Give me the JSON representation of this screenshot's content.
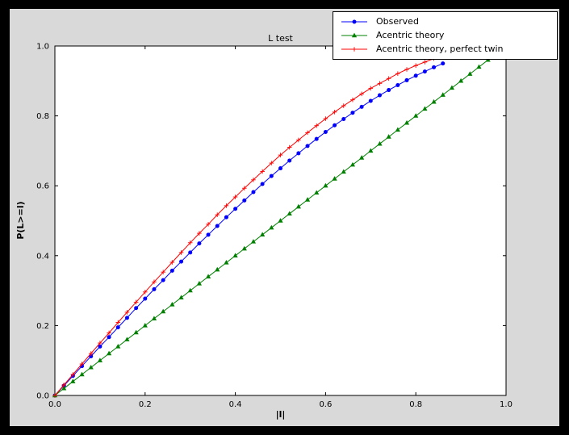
{
  "window": {
    "background": "#000000"
  },
  "figure": {
    "background": "#d9d9d9"
  },
  "axes": {
    "facecolor": "#ffffff",
    "edgecolor": "#000000"
  },
  "chart_data": {
    "type": "line",
    "title": "L test",
    "xlabel": "|l|",
    "ylabel": "P(L>=l)",
    "xlim": [
      0.0,
      1.0
    ],
    "ylim": [
      0.0,
      1.0
    ],
    "xticks": [
      0.0,
      0.2,
      0.4,
      0.6,
      0.8,
      1.0
    ],
    "yticks": [
      0.0,
      0.2,
      0.4,
      0.6,
      0.8,
      1.0
    ],
    "grid": false,
    "legend_position": "upper right",
    "series": [
      {
        "name": "Observed",
        "color": "#0000ff",
        "marker": "circle",
        "x": [
          0,
          0.02,
          0.04,
          0.06,
          0.08,
          0.1,
          0.12,
          0.14,
          0.16,
          0.18,
          0.2,
          0.22,
          0.24,
          0.26,
          0.28,
          0.3,
          0.32,
          0.34,
          0.36,
          0.38,
          0.4,
          0.42,
          0.44,
          0.46,
          0.48,
          0.5,
          0.52,
          0.54,
          0.56,
          0.58,
          0.6,
          0.62,
          0.64,
          0.66,
          0.68,
          0.7,
          0.72,
          0.74,
          0.76,
          0.78,
          0.8,
          0.82,
          0.84,
          0.86
        ],
        "y": [
          0,
          0.028,
          0.056,
          0.084,
          0.112,
          0.14,
          0.167,
          0.195,
          0.222,
          0.25,
          0.277,
          0.304,
          0.33,
          0.357,
          0.383,
          0.409,
          0.435,
          0.46,
          0.485,
          0.51,
          0.534,
          0.558,
          0.582,
          0.605,
          0.628,
          0.65,
          0.672,
          0.693,
          0.714,
          0.734,
          0.754,
          0.773,
          0.791,
          0.809,
          0.826,
          0.843,
          0.859,
          0.874,
          0.888,
          0.902,
          0.915,
          0.927,
          0.939,
          0.95
        ]
      },
      {
        "name": "Acentric theory",
        "color": "#008000",
        "marker": "triangle",
        "x": [
          0,
          0.02,
          0.04,
          0.06,
          0.08,
          0.1,
          0.12,
          0.14,
          0.16,
          0.18,
          0.2,
          0.22,
          0.24,
          0.26,
          0.28,
          0.3,
          0.32,
          0.34,
          0.36,
          0.38,
          0.4,
          0.42,
          0.44,
          0.46,
          0.48,
          0.5,
          0.52,
          0.54,
          0.56,
          0.58,
          0.6,
          0.62,
          0.64,
          0.66,
          0.68,
          0.7,
          0.72,
          0.74,
          0.76,
          0.78,
          0.8,
          0.82,
          0.84,
          0.86,
          0.88,
          0.9,
          0.92,
          0.94,
          0.96
        ],
        "y": [
          0,
          0.02,
          0.04,
          0.06,
          0.08,
          0.1,
          0.12,
          0.14,
          0.16,
          0.18,
          0.2,
          0.22,
          0.24,
          0.26,
          0.28,
          0.3,
          0.32,
          0.34,
          0.36,
          0.38,
          0.4,
          0.42,
          0.44,
          0.46,
          0.48,
          0.5,
          0.52,
          0.54,
          0.56,
          0.58,
          0.6,
          0.62,
          0.64,
          0.66,
          0.68,
          0.7,
          0.72,
          0.74,
          0.76,
          0.78,
          0.8,
          0.82,
          0.84,
          0.86,
          0.88,
          0.9,
          0.92,
          0.94,
          0.96
        ]
      },
      {
        "name": "Acentric theory, perfect twin",
        "color": "#ff0000",
        "marker": "plus",
        "x": [
          0,
          0.02,
          0.04,
          0.06,
          0.08,
          0.1,
          0.12,
          0.14,
          0.16,
          0.18,
          0.2,
          0.22,
          0.24,
          0.26,
          0.28,
          0.3,
          0.32,
          0.34,
          0.36,
          0.38,
          0.4,
          0.42,
          0.44,
          0.46,
          0.48,
          0.5,
          0.52,
          0.54,
          0.56,
          0.58,
          0.6,
          0.62,
          0.64,
          0.66,
          0.68,
          0.7,
          0.72,
          0.74,
          0.76,
          0.78,
          0.8,
          0.82,
          0.84,
          0.86,
          0.88
        ],
        "y": [
          0,
          0.03,
          0.06,
          0.09,
          0.12,
          0.15,
          0.179,
          0.209,
          0.238,
          0.267,
          0.296,
          0.325,
          0.353,
          0.381,
          0.409,
          0.437,
          0.464,
          0.49,
          0.517,
          0.543,
          0.568,
          0.593,
          0.617,
          0.641,
          0.665,
          0.688,
          0.71,
          0.731,
          0.752,
          0.772,
          0.792,
          0.811,
          0.829,
          0.846,
          0.863,
          0.879,
          0.893,
          0.907,
          0.921,
          0.933,
          0.944,
          0.954,
          0.964,
          0.972,
          0.979
        ]
      }
    ]
  }
}
